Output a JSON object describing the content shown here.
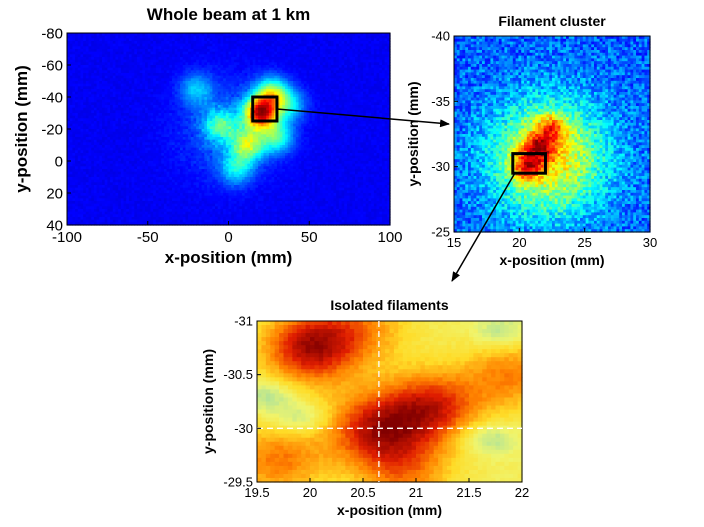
{
  "chart_data": [
    {
      "type": "heatmap",
      "title": "Whole beam at 1 km",
      "xlabel": "x-position (mm)",
      "ylabel": "y-position (mm)",
      "xlim": [
        -100,
        100
      ],
      "ylim": [
        -80,
        40
      ],
      "y_reversed": true,
      "xticks": [
        -100,
        -50,
        0,
        50,
        100
      ],
      "yticks": [
        -80,
        -60,
        -40,
        -20,
        0,
        20,
        40
      ],
      "colormap": "jet",
      "grid": false,
      "hotspots": [
        {
          "x": 20,
          "y": -30,
          "level": 1.0
        },
        {
          "x": 27,
          "y": -42,
          "level": 0.55
        },
        {
          "x": 12,
          "y": -10,
          "level": 0.5
        },
        {
          "x": -5,
          "y": -22,
          "level": 0.35
        },
        {
          "x": 30,
          "y": -15,
          "level": 0.4
        },
        {
          "x": 38,
          "y": -35,
          "level": 0.3
        },
        {
          "x": -20,
          "y": -45,
          "level": 0.25
        },
        {
          "x": 5,
          "y": 5,
          "level": 0.3
        }
      ],
      "inset_box": {
        "x": [
          15,
          30
        ],
        "y": [
          -40,
          -25
        ]
      }
    },
    {
      "type": "heatmap",
      "title": "Filament cluster",
      "xlabel": "x-position (mm)",
      "ylabel": "y-position (mm)",
      "xlim": [
        15,
        30
      ],
      "ylim": [
        -40,
        -25
      ],
      "y_reversed": true,
      "xticks": [
        15,
        20,
        25,
        30
      ],
      "yticks": [
        -40,
        -35,
        -30,
        -25
      ],
      "colormap": "jet",
      "grid": false,
      "hotspots": [
        {
          "x": 21.5,
          "y": -31.5,
          "level": 1.0
        },
        {
          "x": 20.5,
          "y": -30.0,
          "level": 0.9
        },
        {
          "x": 22.5,
          "y": -33.0,
          "level": 0.75
        }
      ],
      "inset_box": {
        "x": [
          19.5,
          22
        ],
        "y": [
          -31,
          -29.5
        ]
      }
    },
    {
      "type": "heatmap",
      "title": "Isolated filaments",
      "xlabel": "x-position (mm)",
      "ylabel": "y-position (mm)",
      "xlim": [
        19.5,
        22
      ],
      "ylim": [
        -31,
        -29.5
      ],
      "y_reversed": true,
      "xticks": [
        19.5,
        20,
        20.5,
        21,
        21.5,
        22
      ],
      "yticks": [
        -31,
        -30.5,
        -30,
        -29.5
      ],
      "colormap": "hot-yellow",
      "grid": false,
      "crosshair": {
        "x": 20.65,
        "y": -30
      },
      "hotspots": [
        {
          "x": 20.0,
          "y": -30.75,
          "level": 1.0
        },
        {
          "x": 21.15,
          "y": -30.2,
          "level": 0.85
        },
        {
          "x": 20.6,
          "y": -30.0,
          "level": 0.85
        },
        {
          "x": 19.7,
          "y": -29.7,
          "level": 0.6
        },
        {
          "x": 21.9,
          "y": -30.5,
          "level": 0.55
        },
        {
          "x": 20.9,
          "y": -29.6,
          "level": 0.55
        },
        {
          "x": 20.5,
          "y": -30.95,
          "level": 0.45
        }
      ],
      "cool_spots": [
        {
          "x": 19.6,
          "y": -30.3
        },
        {
          "x": 21.8,
          "y": -30.9
        },
        {
          "x": 21.7,
          "y": -29.9
        },
        {
          "x": 19.9,
          "y": -30.1
        }
      ]
    }
  ]
}
